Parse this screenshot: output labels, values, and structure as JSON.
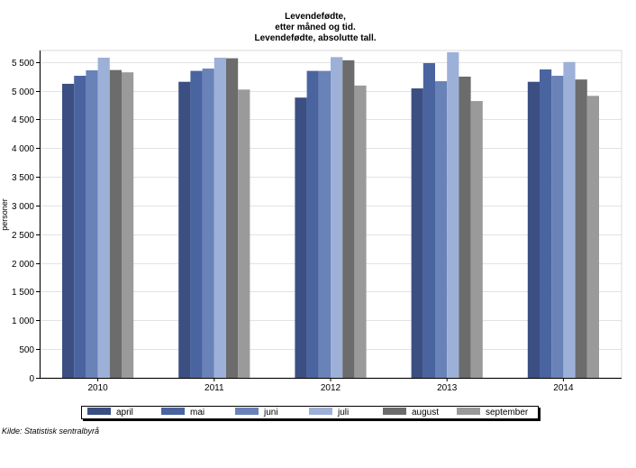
{
  "chart_data": {
    "type": "bar",
    "title": [
      "Levendefødte,",
      "etter måned og tid.",
      "Levendefødte, absolutte tall."
    ],
    "ylabel": "personer",
    "xlabel": "",
    "ylim": [
      0,
      5700
    ],
    "yticks": [
      0,
      500,
      1000,
      1500,
      2000,
      2500,
      3000,
      3500,
      4000,
      4500,
      5000,
      5500
    ],
    "ytick_labels": [
      "0",
      "500",
      "1 000",
      "1 500",
      "2 000",
      "2 500",
      "3 000",
      "3 500",
      "4 000",
      "4 500",
      "5 000",
      "5 500"
    ],
    "grid": true,
    "legend_position": "bottom",
    "categories": [
      "2010",
      "2011",
      "2012",
      "2013",
      "2014"
    ],
    "series": [
      {
        "name": "april",
        "color": "#3b4f82",
        "values": [
          5120,
          5155,
          4880,
          5040,
          5155
        ]
      },
      {
        "name": "mai",
        "color": "#4a64a0",
        "values": [
          5260,
          5345,
          5345,
          5480,
          5370
        ]
      },
      {
        "name": "juni",
        "color": "#6982b8",
        "values": [
          5355,
          5385,
          5345,
          5165,
          5260
        ]
      },
      {
        "name": "juli",
        "color": "#9db0d8",
        "values": [
          5575,
          5575,
          5585,
          5670,
          5500
        ]
      },
      {
        "name": "august",
        "color": "#6c6c6c",
        "values": [
          5360,
          5565,
          5530,
          5245,
          5195
        ]
      },
      {
        "name": "september",
        "color": "#9a9a9a",
        "values": [
          5320,
          5020,
          5090,
          4820,
          4910
        ]
      }
    ]
  },
  "source": "Kilde: Statistisk sentralbyrå"
}
